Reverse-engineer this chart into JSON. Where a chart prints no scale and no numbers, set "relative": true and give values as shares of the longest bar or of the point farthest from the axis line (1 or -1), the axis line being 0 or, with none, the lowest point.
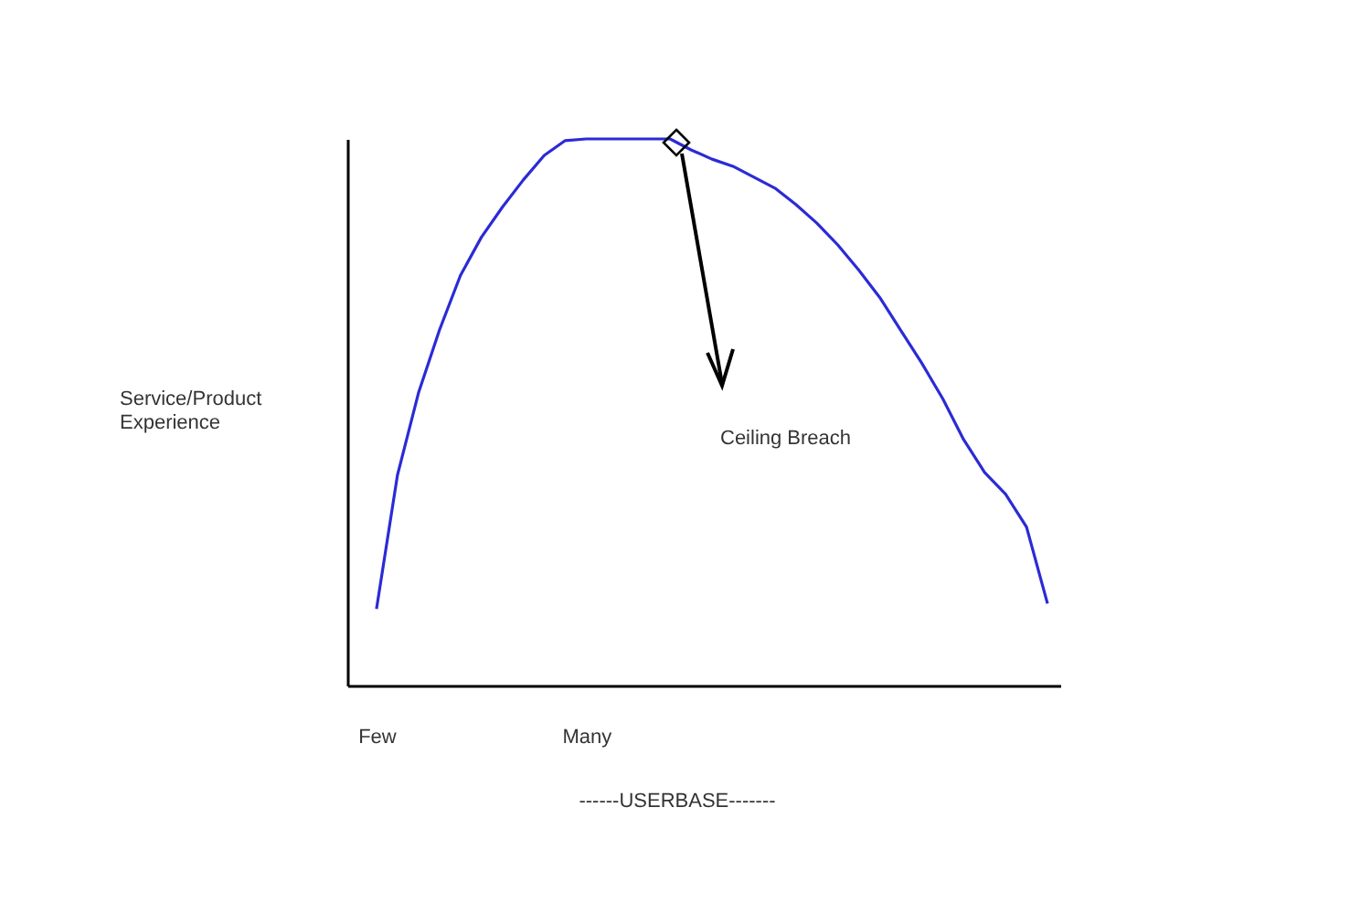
{
  "chart_data": {
    "type": "line",
    "relative": true,
    "xlabel": "------USERBASE-------",
    "ylabel": "Service/Product Experience",
    "categories": [
      "Few",
      null,
      null,
      null,
      null,
      null,
      null,
      null,
      null,
      null,
      "Many",
      null,
      null,
      null,
      null,
      null,
      null,
      null,
      null,
      null,
      null,
      null,
      null,
      null,
      null,
      null,
      null,
      null,
      null,
      null,
      null,
      null,
      null
    ],
    "series": [
      {
        "color": "#2b2bd6",
        "values": [
          0.14,
          0.385,
          0.535,
          0.65,
          0.75,
          0.82,
          0.875,
          0.925,
          0.97,
          0.997,
          1,
          1,
          1,
          1,
          1,
          0.98,
          0.963,
          0.95,
          0.93,
          0.91,
          0.88,
          0.846,
          0.806,
          0.76,
          0.71,
          0.65,
          0.59,
          0.525,
          0.45,
          0.39,
          0.35,
          0.29,
          0.15
        ]
      }
    ],
    "annotations": [
      "Ceiling Breach"
    ]
  }
}
